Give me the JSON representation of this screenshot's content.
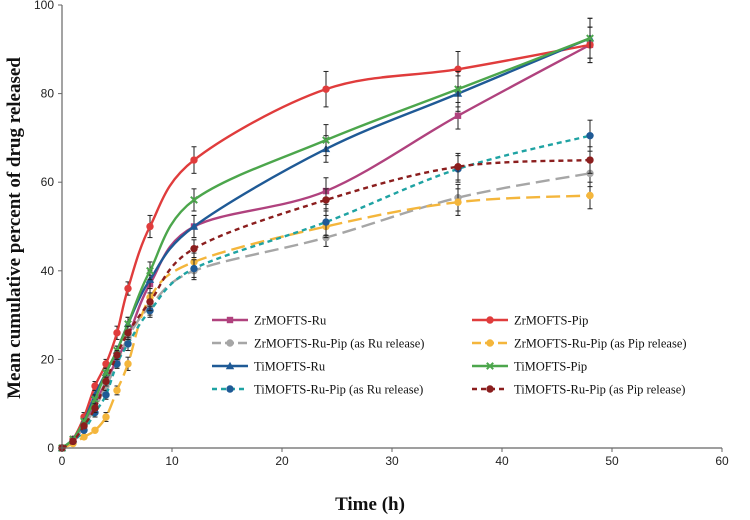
{
  "chart_data": {
    "type": "line",
    "title": "",
    "xlabel": "Time (h)",
    "ylabel": "Mean cumulative percent of drug released",
    "xlim": [
      0,
      60
    ],
    "ylim": [
      0,
      100
    ],
    "xticks": [
      0,
      10,
      20,
      30,
      40,
      50,
      60
    ],
    "yticks": [
      0,
      20,
      40,
      60,
      80,
      100
    ],
    "grid": false,
    "legend_position": "lower-right",
    "series": [
      {
        "name": "ZrMOFTS-Ru",
        "color": "#b0427e",
        "marker": "square",
        "dash": "solid",
        "x": [
          0,
          1,
          2,
          3,
          4,
          5,
          6,
          8,
          12,
          24,
          36,
          48
        ],
        "y": [
          0,
          1.5,
          5,
          10,
          15,
          20,
          25,
          37,
          50,
          58,
          75,
          91
        ],
        "err": [
          0,
          0.5,
          0.5,
          1,
          1,
          1,
          1.5,
          2,
          2.5,
          3,
          3,
          4
        ]
      },
      {
        "name": "ZrMOFTS-Pip",
        "color": "#e03c3c",
        "marker": "circle",
        "dash": "solid",
        "x": [
          0,
          1,
          2,
          3,
          4,
          5,
          6,
          8,
          12,
          24,
          36,
          48
        ],
        "y": [
          0,
          2,
          7,
          14,
          19,
          26,
          36,
          50,
          65,
          81,
          85.5,
          91
        ],
        "err": [
          0,
          0.5,
          1,
          1,
          1,
          1.5,
          1.5,
          2.5,
          3,
          4,
          4,
          4
        ]
      },
      {
        "name": "ZrMOFTS-Ru-Pip (as Ru release)",
        "color": "#a6a6a6",
        "marker": "circle",
        "dash": "long-dash",
        "x": [
          0,
          1,
          2,
          3,
          4,
          5,
          6,
          8,
          12,
          24,
          36,
          48
        ],
        "y": [
          0,
          1.5,
          5,
          9,
          14,
          19,
          25,
          32,
          40,
          47.5,
          56.5,
          62
        ],
        "err": [
          0,
          0.5,
          0.5,
          1,
          1,
          1,
          1.5,
          2,
          2,
          2,
          3,
          3
        ]
      },
      {
        "name": "ZrMOFTS-Ru-Pip (as Pip release)",
        "color": "#f4b63c",
        "marker": "circle",
        "dash": "long-dash",
        "x": [
          0,
          1,
          2,
          3,
          4,
          5,
          6,
          8,
          12,
          24,
          36,
          48
        ],
        "y": [
          0,
          1,
          2.5,
          4,
          7,
          13,
          19,
          34,
          42,
          50,
          55.5,
          57
        ],
        "err": [
          0,
          0.5,
          0.5,
          0.5,
          1,
          1,
          1.5,
          2,
          2,
          2.5,
          3,
          3
        ]
      },
      {
        "name": "TiMOFTS-Ru",
        "color": "#1f5a96",
        "marker": "triangle",
        "dash": "solid",
        "x": [
          0,
          1,
          2,
          3,
          4,
          5,
          6,
          8,
          12,
          24,
          36,
          48
        ],
        "y": [
          0,
          2,
          6,
          12,
          17,
          22,
          28,
          38,
          50,
          67.5,
          80,
          92.5
        ],
        "err": [
          0,
          0.5,
          0.5,
          1,
          1,
          1,
          1.5,
          2,
          2.5,
          3,
          4,
          4.5
        ]
      },
      {
        "name": "TiMOFTS-Pip",
        "color": "#4ca64c",
        "marker": "x",
        "dash": "solid",
        "x": [
          0,
          1,
          2,
          3,
          4,
          5,
          6,
          8,
          12,
          24,
          36,
          48
        ],
        "y": [
          0,
          2,
          6,
          11,
          17,
          22,
          28,
          40,
          56,
          69.5,
          81,
          92.5
        ],
        "err": [
          0,
          0.5,
          0.5,
          1,
          1,
          1,
          1.5,
          2,
          2.5,
          3.5,
          4,
          4.5
        ]
      },
      {
        "name": "TiMOFTS-Ru-Pip (as Ru release)",
        "color": "#1fa3a3",
        "marker": "circle",
        "dash": "short-dash",
        "marker_color": "#1f5a96",
        "x": [
          0,
          1,
          2,
          3,
          4,
          5,
          6,
          8,
          12,
          24,
          36,
          48
        ],
        "y": [
          0,
          1.5,
          4,
          8,
          12,
          19,
          23.5,
          31,
          40.5,
          51,
          63,
          70.5
        ],
        "err": [
          0,
          0.5,
          0.5,
          1,
          1,
          1,
          1.5,
          1.5,
          2,
          3,
          3,
          3.5
        ]
      },
      {
        "name": "TiMOFTS-Ru-Pip (as Pip release)",
        "color": "#8b1e1e",
        "marker": "circle",
        "dash": "short-dash",
        "x": [
          0,
          1,
          2,
          3,
          4,
          5,
          6,
          8,
          12,
          24,
          36,
          48
        ],
        "y": [
          0,
          1.5,
          5,
          9,
          15,
          21,
          26,
          33,
          45,
          56,
          63.5,
          65
        ],
        "err": [
          0,
          0.5,
          0.5,
          1,
          1,
          1,
          1.5,
          2,
          2,
          2.5,
          3,
          3
        ]
      }
    ]
  }
}
